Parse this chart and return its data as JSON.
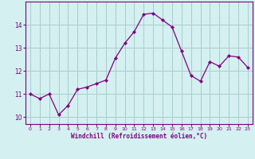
{
  "x": [
    0,
    1,
    2,
    3,
    4,
    5,
    6,
    7,
    8,
    9,
    10,
    11,
    12,
    13,
    14,
    15,
    16,
    17,
    18,
    19,
    20,
    21,
    22,
    23
  ],
  "y": [
    11.0,
    10.8,
    11.0,
    10.1,
    10.5,
    11.2,
    11.3,
    11.45,
    11.6,
    12.55,
    13.2,
    13.7,
    14.45,
    14.5,
    14.2,
    13.9,
    12.85,
    11.8,
    11.55,
    12.4,
    12.2,
    12.65,
    12.6,
    12.15
  ],
  "line_color": "#800080",
  "marker": "D",
  "marker_size": 2.0,
  "bg_color": "#d4f0f0",
  "grid_color": "#aacccc",
  "xlabel": "Windchill (Refroidissement éolien,°C)",
  "xlabel_color": "#800080",
  "tick_color": "#800080",
  "ylim": [
    9.7,
    15.0
  ],
  "xlim": [
    -0.5,
    23.5
  ],
  "yticks": [
    10,
    11,
    12,
    13,
    14
  ],
  "xticks": [
    0,
    1,
    2,
    3,
    4,
    5,
    6,
    7,
    8,
    9,
    10,
    11,
    12,
    13,
    14,
    15,
    16,
    17,
    18,
    19,
    20,
    21,
    22,
    23
  ]
}
